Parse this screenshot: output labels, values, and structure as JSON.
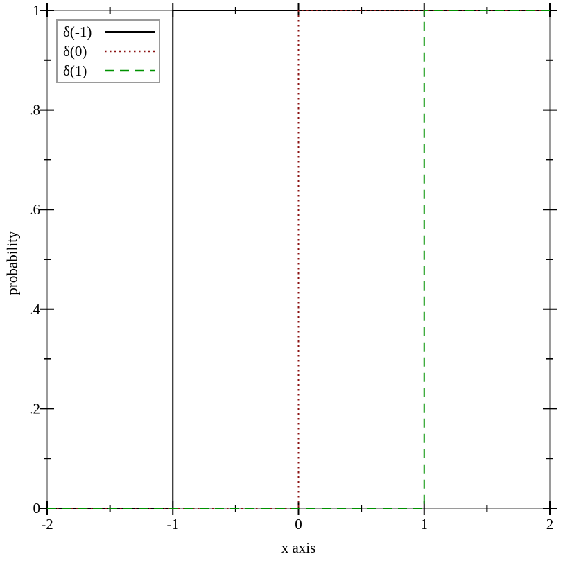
{
  "figure": {
    "background": "#ffffff",
    "frame_color": "#9a9a9a",
    "tick_color": "#000000",
    "text_color": "#000000"
  },
  "chart_data": {
    "type": "line",
    "title": "",
    "xlabel": "x axis",
    "ylabel": "probability",
    "xlim": [
      -2,
      2
    ],
    "ylim": [
      0,
      1
    ],
    "grid": false,
    "legend_position": "top-left",
    "x_major_ticks": [
      -2,
      -1,
      0,
      1,
      2
    ],
    "x_minor_ticks": [
      -1.5,
      -0.5,
      0.5,
      1.5
    ],
    "x_tick_labels": [
      "-2",
      "-1",
      "0",
      "1",
      "2"
    ],
    "y_major_ticks": [
      0,
      0.2,
      0.4,
      0.6,
      0.8,
      1
    ],
    "y_minor_ticks": [
      0.1,
      0.3,
      0.5,
      0.7,
      0.9
    ],
    "y_tick_labels": [
      "0",
      ".2",
      ".4",
      ".6",
      ".8",
      "1"
    ],
    "series": [
      {
        "name": "δ(-1)",
        "style": "solid",
        "color": "#000000",
        "description": "CDF step function rising from 0 to 1 at x = -1",
        "points": [
          [
            -2,
            0
          ],
          [
            -1,
            0
          ],
          [
            -1,
            1
          ],
          [
            2,
            1
          ]
        ]
      },
      {
        "name": "δ(0)",
        "style": "dotted",
        "color": "#8b1212",
        "description": "CDF step function rising from 0 to 1 at x = 0",
        "points": [
          [
            -2,
            0
          ],
          [
            0,
            0
          ],
          [
            0,
            1
          ],
          [
            2,
            1
          ]
        ]
      },
      {
        "name": "δ(1)",
        "style": "dashed",
        "color": "#009100",
        "description": "CDF step function rising from 0 to 1 at x = 1",
        "points": [
          [
            -2,
            0
          ],
          [
            1,
            0
          ],
          [
            1,
            1
          ],
          [
            2,
            1
          ]
        ]
      }
    ]
  }
}
